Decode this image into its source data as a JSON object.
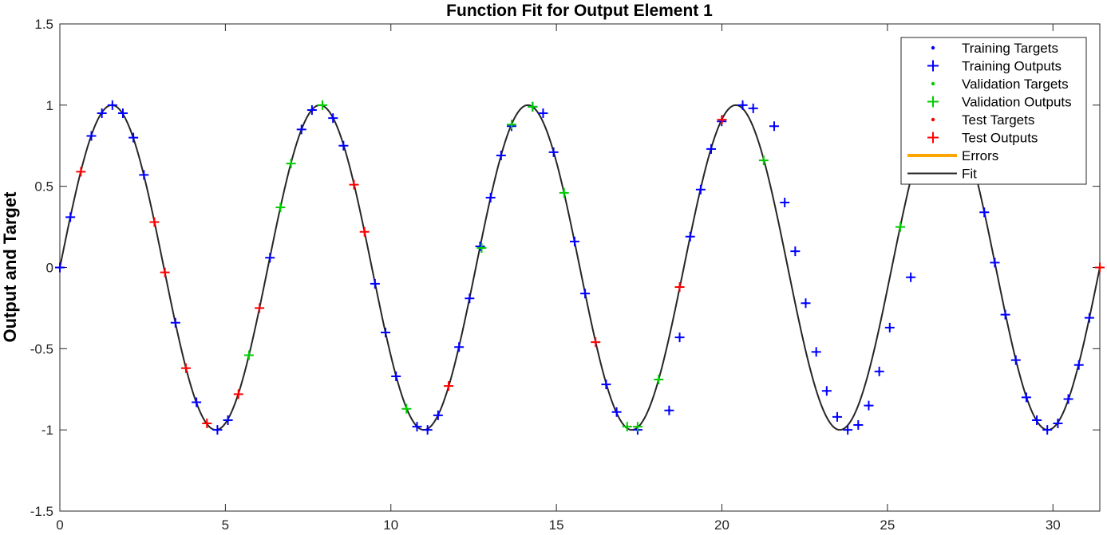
{
  "chart_data": {
    "type": "line",
    "title": "Function Fit for Output Element 1",
    "xlabel": "",
    "ylabel": "Output and Target",
    "xlim": [
      0,
      31.4159
    ],
    "ylim": [
      -1.5,
      1.5
    ],
    "xticks": [
      "0",
      "5",
      "10",
      "15",
      "20",
      "25",
      "30"
    ],
    "yticks": [
      "-1.5",
      "-1",
      "-0.5",
      "0",
      "0.5",
      "1",
      "1.5"
    ],
    "grid": false,
    "legend_position": "top-right",
    "fit": {
      "name": "Fit",
      "function": "sin(x)",
      "color": "#262626"
    },
    "errors": {
      "name": "Errors",
      "color": "#FFA500"
    },
    "series": [
      {
        "name": "Training Targets",
        "marker": "dot",
        "color": "#0000FF"
      },
      {
        "name": "Training Outputs",
        "marker": "plus",
        "color": "#0000FF",
        "x": [
          0,
          0.317,
          0.952,
          1.269,
          1.587,
          1.904,
          2.221,
          2.539,
          3.491,
          4.126,
          4.76,
          5.077,
          6.347,
          7.299,
          7.616,
          8.251,
          8.568,
          9.52,
          9.838,
          10.155,
          10.79,
          11.107,
          11.425,
          12.059,
          12.377,
          12.694,
          13.011,
          13.329,
          13.646,
          14.281,
          14.598,
          14.915,
          15.55,
          15.867,
          16.502,
          16.819,
          17.454,
          18.406,
          18.723,
          19.041,
          19.358,
          19.675,
          19.993,
          20.627,
          20.945,
          21.579,
          21.897,
          22.214,
          22.531,
          22.849,
          23.166,
          23.483,
          23.801,
          24.118,
          24.435,
          24.753,
          25.07,
          25.705,
          26.34,
          26.974,
          27.292,
          27.609,
          27.926,
          28.244,
          28.561,
          28.878,
          29.196,
          29.513,
          29.83,
          30.148,
          30.465,
          30.782,
          31.1
        ],
        "y": [
          0,
          0.31,
          0.81,
          0.95,
          1.0,
          0.95,
          0.8,
          0.57,
          -0.34,
          -0.83,
          -1.0,
          -0.94,
          0.06,
          0.85,
          0.97,
          0.92,
          0.75,
          -0.1,
          -0.4,
          -0.67,
          -0.98,
          -1.0,
          -0.91,
          -0.49,
          -0.19,
          0.13,
          0.43,
          0.69,
          0.87,
          0.99,
          0.95,
          0.71,
          0.16,
          -0.16,
          -0.72,
          -0.89,
          -1.0,
          -0.88,
          -0.43,
          0.19,
          0.48,
          0.73,
          0.9,
          1.0,
          0.98,
          0.87,
          0.4,
          0.1,
          -0.22,
          -0.52,
          -0.76,
          -0.92,
          -1.0,
          -0.97,
          -0.85,
          -0.64,
          -0.37,
          -0.06,
          0.7,
          0.85,
          0.94,
          0.97,
          0.34,
          0.03,
          -0.29,
          -0.57,
          -0.8,
          -0.94,
          -1.0,
          -0.96,
          -0.81,
          -0.6,
          -0.31
        ]
      },
      {
        "name": "Validation Targets",
        "marker": "dot",
        "color": "#00CC00"
      },
      {
        "name": "Validation Outputs",
        "marker": "plus",
        "color": "#00CC00",
        "x": [
          5.712,
          6.664,
          6.981,
          7.933,
          10.472,
          12.742,
          13.646,
          14.281,
          15.232,
          17.137,
          17.454,
          18.089,
          21.262,
          25.388
        ],
        "y": [
          -0.54,
          0.37,
          0.64,
          1.0,
          -0.87,
          0.12,
          0.88,
          0.99,
          0.46,
          -0.98,
          -0.98,
          -0.69,
          0.66,
          0.25
        ]
      },
      {
        "name": "Test Targets",
        "marker": "dot",
        "color": "#FF0000"
      },
      {
        "name": "Test Outputs",
        "marker": "plus",
        "color": "#FF0000",
        "x": [
          0.635,
          2.856,
          3.174,
          3.808,
          4.443,
          5.395,
          6.03,
          8.885,
          9.203,
          11.743,
          16.184,
          18.723,
          20.0,
          31.416
        ],
        "y": [
          0.59,
          0.28,
          -0.03,
          -0.62,
          -0.96,
          -0.78,
          -0.25,
          0.51,
          0.22,
          -0.73,
          -0.46,
          -0.12,
          0.91,
          0
        ]
      }
    ]
  }
}
